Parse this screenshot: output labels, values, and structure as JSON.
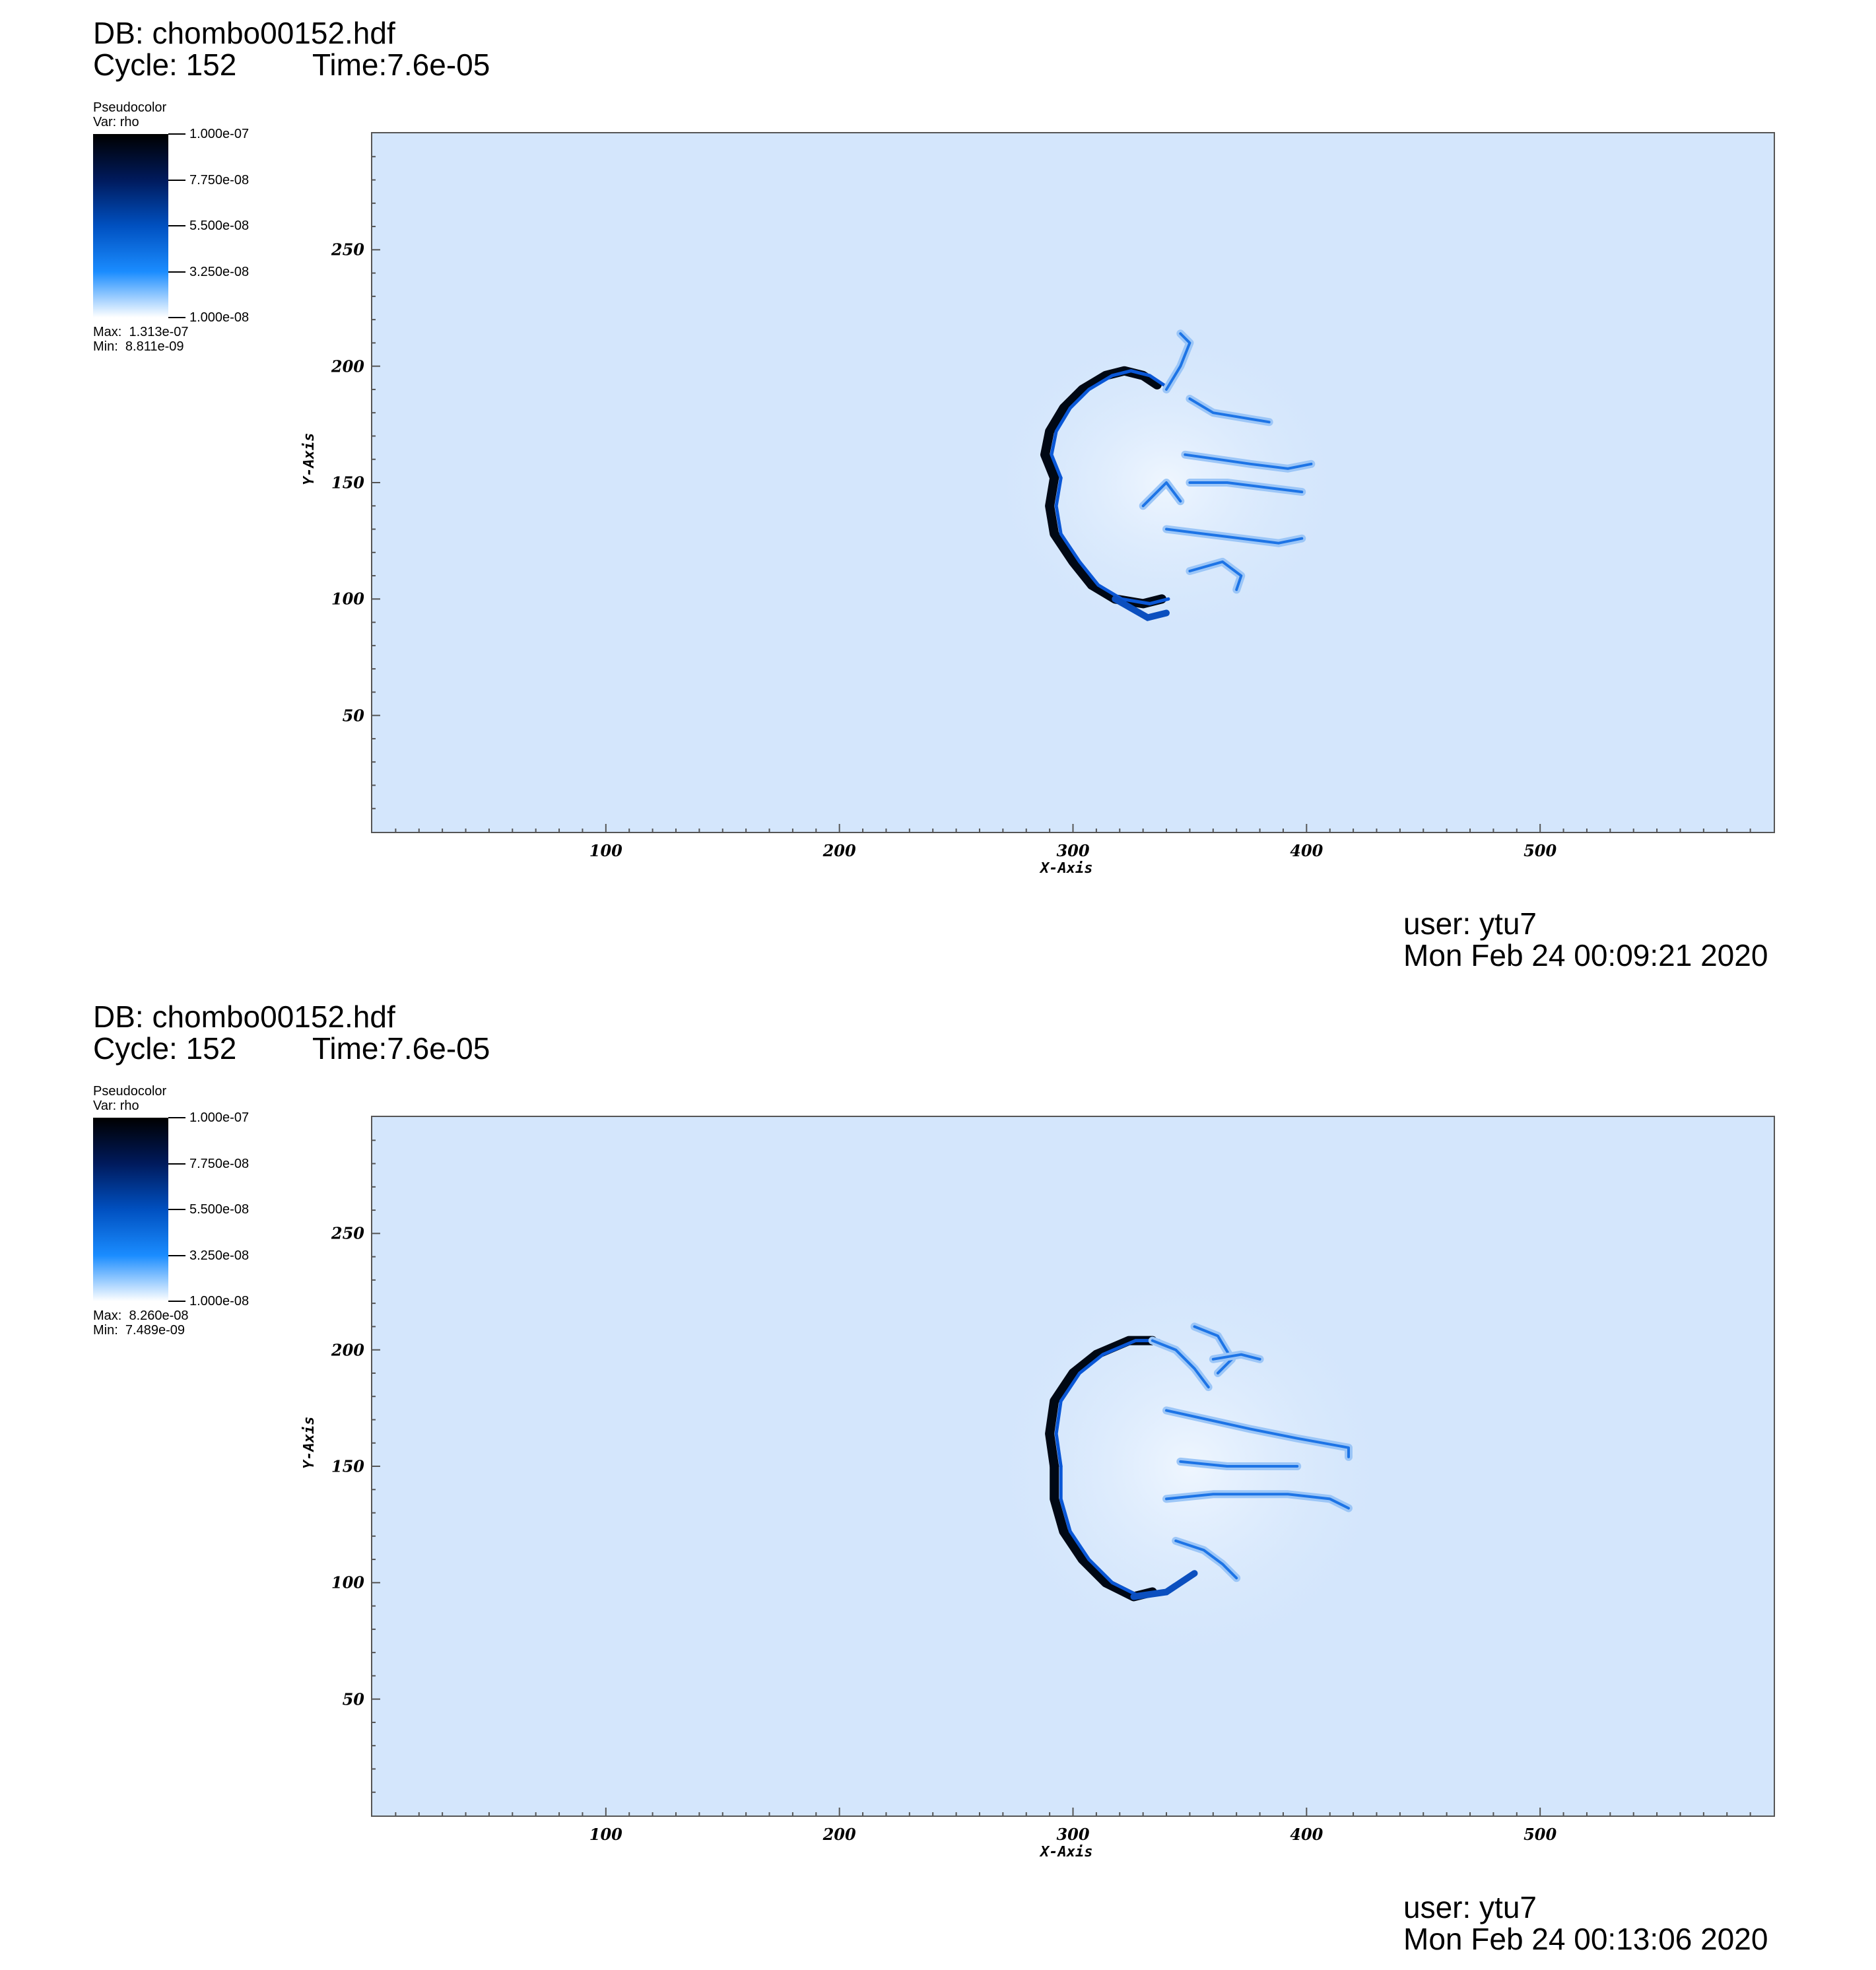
{
  "panels": [
    {
      "db": "DB: chombo00152.hdf",
      "cycle": "Cycle: 152",
      "time": "Time:7.6e-05",
      "legend": {
        "title": "Pseudocolor",
        "var": "Var: rho",
        "ticks": [
          "1.000e-07",
          "7.750e-08",
          "5.500e-08",
          "3.250e-08",
          "1.000e-08"
        ],
        "max": "Max:  1.313e-07",
        "min": "Min:  8.811e-09"
      },
      "user": "user: ytu7",
      "date": "Mon Feb 24 00:09:21 2020"
    },
    {
      "db": "DB: chombo00152.hdf",
      "cycle": "Cycle: 152",
      "time": "Time:7.6e-05",
      "legend": {
        "title": "Pseudocolor",
        "var": "Var: rho",
        "ticks": [
          "1.000e-07",
          "7.750e-08",
          "5.500e-08",
          "3.250e-08",
          "1.000e-08"
        ],
        "max": "Max:  8.260e-08",
        "min": "Min:  7.489e-09"
      },
      "user": "user: ytu7",
      "date": "Mon Feb 24 00:13:06 2020"
    }
  ],
  "chart_data": [
    {
      "type": "heatmap",
      "variable": "rho",
      "colormap": [
        "#ffffff",
        "#1a8cff",
        "#0050c0",
        "#001a5c",
        "#000000"
      ],
      "background_color": "#d4e6fc",
      "xlabel": "X-Axis",
      "ylabel": "Y-Axis",
      "xlim": [
        0,
        600
      ],
      "ylim": [
        0,
        300
      ],
      "xticks": [
        "100",
        "200",
        "300",
        "400",
        "500"
      ],
      "yticks": [
        "50",
        "100",
        "150",
        "200",
        "250"
      ],
      "color_range": [
        1e-08,
        1e-07
      ],
      "max": 1.313e-07,
      "min": 8.811e-09
    },
    {
      "type": "heatmap",
      "variable": "rho",
      "colormap": [
        "#ffffff",
        "#1a8cff",
        "#0050c0",
        "#001a5c",
        "#000000"
      ],
      "background_color": "#d4e6fc",
      "xlabel": "X-Axis",
      "ylabel": "Y-Axis",
      "xlim": [
        0,
        600
      ],
      "ylim": [
        0,
        300
      ],
      "xticks": [
        "100",
        "200",
        "300",
        "400",
        "500"
      ],
      "yticks": [
        "50",
        "100",
        "150",
        "200",
        "250"
      ],
      "color_range": [
        1e-08,
        1e-07
      ],
      "max": 8.26e-08,
      "min": 7.489e-09
    }
  ]
}
